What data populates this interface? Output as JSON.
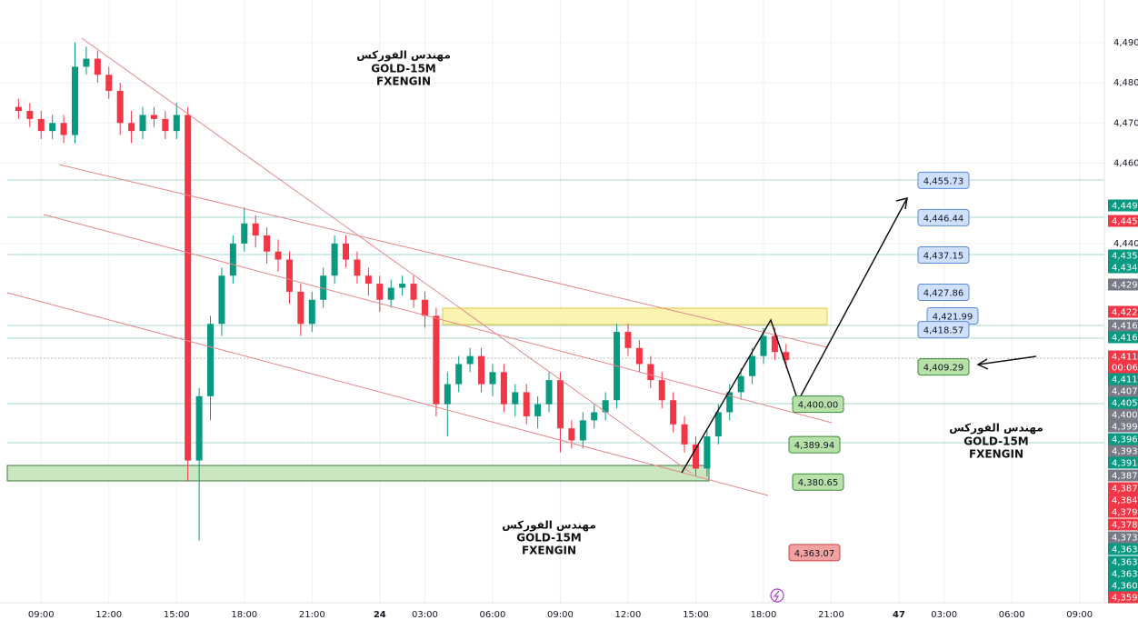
{
  "chart_data": {
    "type": "candlestick",
    "watermarks": [
      [
        "مهندس الفوركس",
        "GOLD-15M",
        "FXENGIN"
      ],
      [
        "مهندس الفوركس",
        "GOLD-15M",
        "FXENGIN"
      ],
      [
        "مهندس الفوركس",
        "GOLD-15M",
        "FXENGIN"
      ]
    ],
    "x": [
      8,
      8.5,
      9,
      9.5,
      10,
      10.5,
      11,
      11.5,
      12,
      12.5,
      13,
      13.5,
      14,
      14.5,
      15,
      15.5,
      16,
      16.5,
      17,
      17.5,
      18,
      18.5,
      19,
      19.5,
      20,
      20.5,
      21,
      21.5,
      22,
      22.5,
      23,
      23.5,
      24,
      24.5,
      25,
      25.5,
      26,
      26.5,
      27,
      27.5,
      28,
      28.5,
      29,
      29.5,
      30,
      30.5,
      31,
      31.5,
      32,
      32.5,
      33,
      33.5,
      34,
      34.5,
      35,
      35.5,
      36,
      36.5,
      37,
      37.5,
      38,
      38.5,
      39,
      39.5,
      40,
      40.5,
      41,
      41.5,
      42
    ],
    "open": [
      4474,
      4473,
      4471,
      4468,
      4470,
      4467,
      4484,
      4486,
      4482,
      4478,
      4470,
      4468,
      4472,
      4471,
      4468,
      4472,
      4386,
      4402,
      4420,
      4432,
      4440,
      4445,
      4442,
      4438,
      4436,
      4428,
      4420,
      4426,
      4432,
      4440,
      4436,
      4432,
      4430,
      4426,
      4429,
      4430,
      4426,
      4422,
      4400,
      4405,
      4410,
      4412,
      4405,
      4408,
      4400,
      4403,
      4397,
      4400,
      4406,
      4394,
      4391,
      4396,
      4398,
      4401,
      4418,
      4414,
      4410,
      4406,
      4401,
      4395,
      4390,
      4384,
      4392,
      4398,
      4403,
      4407,
      4412,
      4417,
      4413
    ],
    "high": [
      4476,
      4475,
      4473,
      4472,
      4472,
      4490,
      4489,
      4488,
      4484,
      4480,
      4473,
      4474,
      4474,
      4473,
      4475,
      4474,
      4404,
      4422,
      4434,
      4442,
      4449,
      4447,
      4444,
      4441,
      4438,
      4430,
      4428,
      4434,
      4442,
      4442,
      4438,
      4434,
      4432,
      4431,
      4432,
      4432,
      4428,
      4424,
      4408,
      4412,
      4414,
      4414,
      4410,
      4410,
      4405,
      4405,
      4402,
      4408,
      4408,
      4396,
      4398,
      4400,
      4403,
      4420,
      4420,
      4416,
      4412,
      4408,
      4403,
      4397,
      4392,
      4394,
      4400,
      4405,
      4409,
      4414,
      4419,
      4419,
      4415
    ],
    "low": [
      4471,
      4469,
      4466,
      4466,
      4465,
      4465,
      4482,
      4480,
      4476,
      4467,
      4465,
      4466,
      4469,
      4466,
      4466,
      4381,
      4366,
      4396,
      4417,
      4430,
      4438,
      4439,
      4435,
      4433,
      4425,
      4417,
      4418,
      4424,
      4430,
      4434,
      4430,
      4427,
      4423,
      4424,
      4427,
      4424,
      4419,
      4397,
      4392,
      4403,
      4408,
      4403,
      4402,
      4398,
      4397,
      4395,
      4394,
      4398,
      4388,
      4389,
      4389,
      4394,
      4396,
      4399,
      4412,
      4408,
      4404,
      4399,
      4393,
      4388,
      4382,
      4382,
      4390,
      4396,
      4401,
      4405,
      4410,
      4411,
      4409
    ],
    "close": [
      4473,
      4471,
      4468,
      4470,
      4467,
      4484,
      4486,
      4482,
      4478,
      4470,
      4468,
      4472,
      4471,
      4468,
      4472,
      4386,
      4402,
      4420,
      4432,
      4440,
      4445,
      4442,
      4438,
      4436,
      4428,
      4420,
      4426,
      4432,
      4440,
      4436,
      4432,
      4430,
      4426,
      4429,
      4430,
      4426,
      4422,
      4400,
      4405,
      4410,
      4412,
      4405,
      4408,
      4400,
      4403,
      4397,
      4400,
      4406,
      4394,
      4391,
      4396,
      4398,
      4401,
      4418,
      4414,
      4410,
      4406,
      4401,
      4395,
      4390,
      4384,
      4392,
      4398,
      4403,
      4407,
      4412,
      4417,
      4413,
      4411
    ],
    "up_color": "#089981",
    "down_color": "#f23645",
    "xlim": [
      7.5,
      56.1
    ],
    "xticks": [
      {
        "value": 9,
        "label": "09:00"
      },
      {
        "value": 12,
        "label": "12:00"
      },
      {
        "value": 15,
        "label": "15:00"
      },
      {
        "value": 18,
        "label": "18:00"
      },
      {
        "value": 21,
        "label": "21:00"
      },
      24,
      {
        "value": 26,
        "label": "03:00"
      },
      {
        "value": 29,
        "label": "06:00"
      },
      {
        "value": 32,
        "label": "09:00"
      },
      {
        "value": 35,
        "label": "12:00"
      },
      {
        "value": 38,
        "label": "15:00"
      },
      {
        "value": 41,
        "label": "18:00"
      },
      {
        "value": 44,
        "label": "21:00"
      },
      47,
      {
        "value": 49,
        "label": "03:00"
      },
      {
        "value": 52,
        "label": "06:00"
      },
      {
        "value": 55,
        "label": "09:00"
      }
    ],
    "day_ticks": [
      24,
      47
    ],
    "ylim": [
      4350.6,
      4498.8
    ],
    "yticks": [
      {
        "value": 4490,
        "label": "4,490."
      },
      {
        "value": 4480,
        "label": "4,480."
      },
      {
        "value": 4470,
        "label": "4,470."
      },
      {
        "value": 4460,
        "label": "4,460."
      },
      {
        "value": 4440,
        "label": "4,440."
      }
    ],
    "grid": true,
    "price_boxes": [
      {
        "value": 4455.73,
        "label": "4,455.73",
        "color": "#cfe0ff"
      },
      {
        "value": 4446.44,
        "label": "4,446.44",
        "color": "#cfe0ff"
      },
      {
        "value": 4437.15,
        "label": "4,437.15",
        "color": "#cfe0ff"
      },
      {
        "value": 4427.86,
        "label": "4,427.86",
        "color": "#cfe0ff"
      },
      {
        "value": 4421.99,
        "label": "4,421.99",
        "color": "#cfe0ff"
      },
      {
        "value": 4418.57,
        "label": "4,418.57",
        "color": "#cfe0ff"
      },
      {
        "value": 4409.29,
        "label": "4,409.29",
        "color": "#b7e1a8"
      },
      {
        "value": 4400.0,
        "label": "4,400.00",
        "color": "#b7e1a8"
      },
      {
        "value": 4389.94,
        "label": "4,389.94",
        "color": "#b7e1a8"
      },
      {
        "value": 4380.65,
        "label": "4,380.65",
        "color": "#b7e1a8"
      },
      {
        "value": 4363.07,
        "label": "4,363.07",
        "color": "#f2a0a0"
      }
    ],
    "axis_labels": [
      {
        "label": "4,449.",
        "color": "#089981"
      },
      {
        "label": "4,445.",
        "color": "#f23645"
      },
      {
        "label": "4,435.",
        "color": "#089981"
      },
      {
        "label": "4,434.",
        "color": "#089981"
      },
      {
        "label": "4,429.",
        "color": "#787b86"
      },
      {
        "label": "4,422.",
        "color": "#f23645"
      },
      {
        "label": "4,416.",
        "color": "#787b86"
      },
      {
        "label": "4,416.",
        "color": "#089981"
      },
      {
        "label": "4,411.",
        "color": "#f23645"
      },
      {
        "label": "00:06",
        "color": "#f23645"
      },
      {
        "label": "4,411.",
        "color": "#089981"
      },
      {
        "label": "4,407.",
        "color": "#787b86"
      },
      {
        "label": "4,405.",
        "color": "#089981"
      },
      {
        "label": "4,400.",
        "color": "#787b86"
      },
      {
        "label": "4,399.",
        "color": "#787b86"
      },
      {
        "label": "4,396.",
        "color": "#089981"
      },
      {
        "label": "4,393.",
        "color": "#787b86"
      },
      {
        "label": "4,391.",
        "color": "#089981"
      },
      {
        "label": "4,387.",
        "color": "#787b86"
      },
      {
        "label": "4,387.",
        "color": "#f23645"
      },
      {
        "label": "4,384.",
        "color": "#f23645"
      },
      {
        "label": "4,379.",
        "color": "#f23645"
      },
      {
        "label": "4,378.",
        "color": "#f23645"
      },
      {
        "label": "4,373.",
        "color": "#787b86"
      },
      {
        "label": "4,363.",
        "color": "#089981"
      },
      {
        "label": "4,363.",
        "color": "#089981"
      },
      {
        "label": "4,363.",
        "color": "#089981"
      },
      {
        "label": "4,360.",
        "color": "#089981"
      },
      {
        "label": "4,359.",
        "color": "#f23645"
      }
    ]
  }
}
